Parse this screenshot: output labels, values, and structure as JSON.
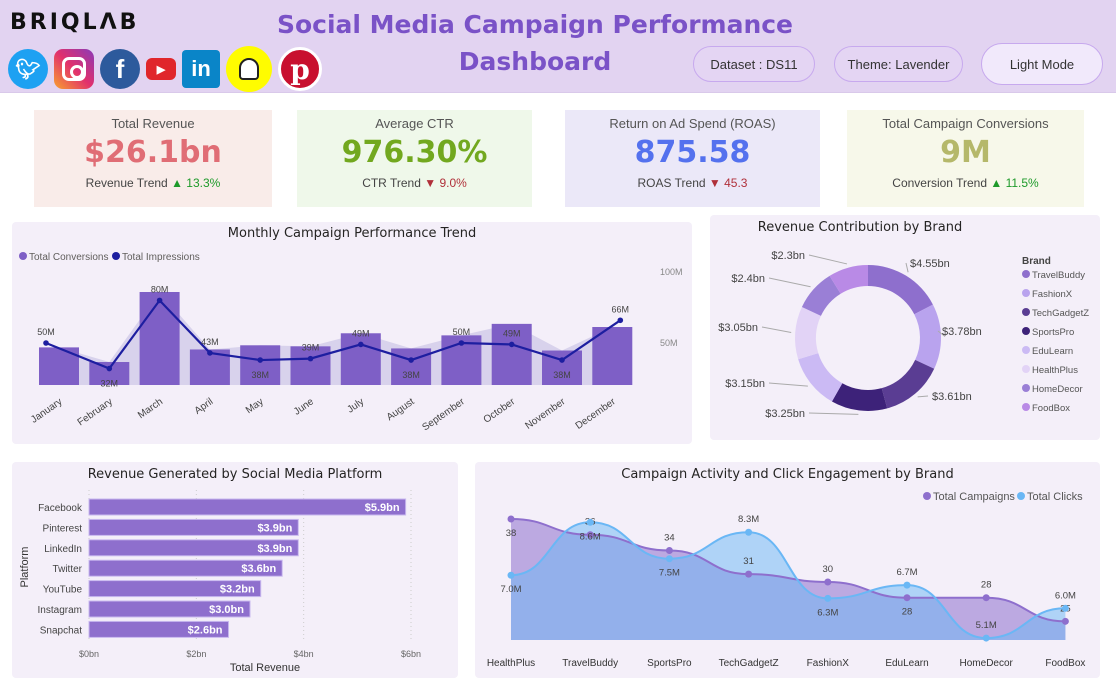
{
  "header": {
    "logo": "BRIQLΛB",
    "social_icons": [
      "twitter-icon",
      "instagram-icon",
      "facebook-icon",
      "youtube-icon",
      "linkedin-icon",
      "snapchat-icon",
      "pinterest-icon"
    ],
    "title": "Social Media Campaign Performance Dashboard",
    "dataset_label": "Dataset : DS11",
    "theme_label": "Theme: Lavender",
    "mode_button": "Light Mode"
  },
  "kpis": [
    {
      "title": "Total Revenue",
      "value": "$26.1bn",
      "trend_label": "Revenue Trend",
      "trend_dir": "up",
      "trend_value": "13.3%",
      "value_color": "#e06d75",
      "bg": "#f9ece9"
    },
    {
      "title": "Average CTR",
      "value": "976.30%",
      "trend_label": "CTR Trend",
      "trend_dir": "down",
      "trend_value": "9.0%",
      "value_color": "#72a81f",
      "bg": "#eff8ea"
    },
    {
      "title": "Return on Ad Spend (ROAS)",
      "value": "875.58",
      "trend_label": "ROAS Trend",
      "trend_dir": "down",
      "trend_value": "45.3",
      "value_color": "#5471ee",
      "bg": "#ebe8f8"
    },
    {
      "title": "Total Campaign Conversions",
      "value": "9M",
      "trend_label": "Conversion Trend",
      "trend_dir": "up",
      "trend_value": "11.5%",
      "value_color": "#b5b86a",
      "bg": "#f7f8ea"
    }
  ],
  "chart_data": [
    {
      "type": "bar",
      "title": "Monthly Campaign Performance Trend",
      "legend": [
        "Total Conversions",
        "Total Impressions"
      ],
      "legend_position": "top-left",
      "categories": [
        "January",
        "February",
        "March",
        "April",
        "May",
        "June",
        "July",
        "August",
        "September",
        "October",
        "November",
        "December"
      ],
      "series": [
        {
          "name": "Total Conversions",
          "kind": "bar",
          "color": "#7e5fc6",
          "values": [
            0.72,
            0.44,
            1.78,
            0.68,
            0.76,
            0.74,
            0.99,
            0.7,
            0.95,
            1.17,
            0.66,
            1.11
          ]
        },
        {
          "name": "Total Impressions",
          "kind": "line",
          "color": "#1d1ea0",
          "values": [
            50,
            32,
            80,
            43,
            38,
            39,
            49,
            38,
            50,
            49,
            38,
            66
          ],
          "labels": [
            "50M",
            "32M",
            "80M",
            "43M",
            "38M",
            "39M",
            "49M",
            "38M",
            "50M",
            "49M",
            "38M",
            "66M"
          ]
        }
      ],
      "y_right_ticks": [
        "50M",
        "100M"
      ],
      "y_right_tick_values": [
        50,
        100
      ],
      "grid": false
    },
    {
      "type": "pie",
      "title": "Revenue Contribution by Brand",
      "legend_title": "Brand",
      "legend_position": "right",
      "categories": [
        "TravelBuddy",
        "FashionX",
        "TechGadgetZ",
        "SportsPro",
        "EduLearn",
        "HealthPlus",
        "HomeDecor",
        "FoodBox"
      ],
      "values": [
        4.55,
        3.78,
        3.61,
        3.25,
        3.15,
        3.05,
        2.4,
        2.3
      ],
      "labels": [
        "$4.55bn",
        "$3.78bn",
        "$3.61bn",
        "$3.25bn",
        "$3.15bn",
        "$3.05bn",
        "$2.4bn",
        "$2.3bn"
      ],
      "colors": [
        "#8e6fcd",
        "#b9a3ee",
        "#5a3d93",
        "#3d2279",
        "#cbbaf4",
        "#e2d3f6",
        "#9a7fd6",
        "#b98ae6"
      ],
      "donut": true
    },
    {
      "type": "bar",
      "orientation": "horizontal",
      "title": "Revenue Generated by Social Media Platform",
      "categories": [
        "Facebook",
        "Pinterest",
        "LinkedIn",
        "Twitter",
        "YouTube",
        "Instagram",
        "Snapchat"
      ],
      "values": [
        5.9,
        3.9,
        3.9,
        3.6,
        3.2,
        3.0,
        2.6
      ],
      "labels": [
        "$5.9bn",
        "$3.9bn",
        "$3.9bn",
        "$3.6bn",
        "$3.2bn",
        "$3.0bn",
        "$2.6bn"
      ],
      "xlabel": "Total Revenue",
      "ylabel": "Platform",
      "x_ticks": [
        "$0bn",
        "$2bn",
        "$4bn",
        "$6bn"
      ],
      "x_tick_values": [
        0,
        2,
        4,
        6
      ],
      "xlim": [
        0,
        6.4
      ],
      "color": "#8e6fcd",
      "grid": true
    },
    {
      "type": "area",
      "title": "Campaign Activity and Click Engagement by Brand",
      "legend": [
        "Total Campaigns",
        "Total Clicks"
      ],
      "legend_position": "top-right",
      "categories": [
        "HealthPlus",
        "TravelBuddy",
        "SportsPro",
        "TechGadgetZ",
        "FashionX",
        "EduLearn",
        "HomeDecor",
        "FoodBox"
      ],
      "series": [
        {
          "name": "Total Campaigns",
          "color": "#8e6fcd",
          "values": [
            38,
            36,
            34,
            31,
            30,
            28,
            28,
            25
          ],
          "labels": [
            "38",
            "36",
            "34",
            "31",
            "30",
            "28",
            "28",
            "25"
          ]
        },
        {
          "name": "Total Clicks",
          "color": "#6ab7f5",
          "values": [
            7.0,
            8.6,
            7.5,
            8.3,
            6.3,
            6.7,
            5.1,
            6.0
          ],
          "labels": [
            "7.0M",
            "8.6M",
            "7.5M",
            "8.3M",
            "6.3M",
            "6.7M",
            "5.1M",
            "6.0M"
          ]
        }
      ]
    }
  ]
}
